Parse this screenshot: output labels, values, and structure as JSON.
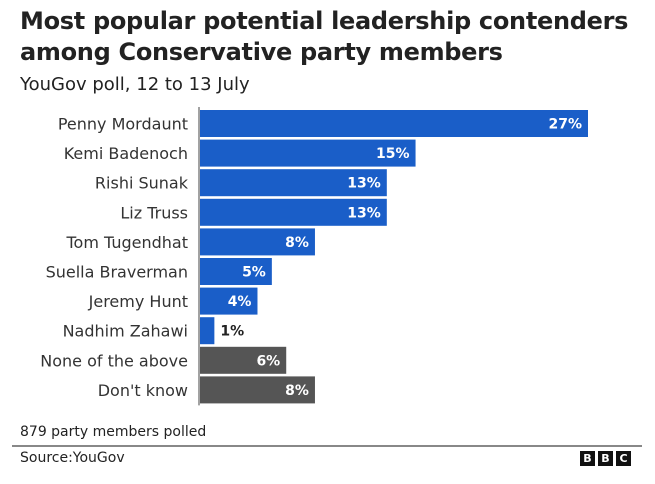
{
  "chart_data": {
    "type": "bar",
    "orientation": "horizontal",
    "title": "Most popular potential leadership contenders among Conservative party members",
    "subtitle": "YouGov poll, 12 to 13 July",
    "categories": [
      "Penny Mordaunt",
      "Kemi Badenoch",
      "Rishi Sunak",
      "Liz Truss",
      "Tom Tugendhat",
      "Suella Braverman",
      "Jeremy Hunt",
      "Nadhim Zahawi",
      "None of the above",
      "Don't know"
    ],
    "values": [
      27,
      15,
      13,
      13,
      8,
      5,
      4,
      1,
      6,
      8
    ],
    "labels": [
      "27%",
      "15%",
      "13%",
      "13%",
      "8%",
      "5%",
      "4%",
      "1%",
      "6%",
      "8%"
    ],
    "colors": [
      "#1a5ec8",
      "#1a5ec8",
      "#1a5ec8",
      "#1a5ec8",
      "#1a5ec8",
      "#1a5ec8",
      "#1a5ec8",
      "#1a5ec8",
      "#555555",
      "#555555"
    ],
    "xlim": [
      0,
      27
    ],
    "xlabel": "",
    "ylabel": "",
    "grid": false
  },
  "footer": {
    "note": "879 party members polled",
    "source": "Source:YouGov",
    "logo_letters": [
      "B",
      "B",
      "C"
    ]
  }
}
